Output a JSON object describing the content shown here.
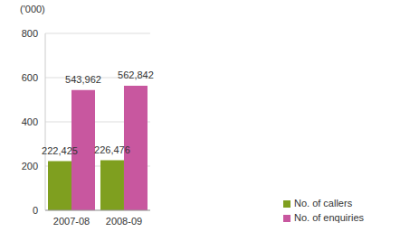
{
  "chart_data": {
    "type": "bar",
    "y_label": "('000)",
    "categories": [
      "2007-08",
      "2008-09"
    ],
    "series": [
      {
        "name": "No. of callers",
        "color": "#7f9f1f",
        "values": [
          222.425,
          226.476
        ],
        "value_labels": [
          "222,425",
          "226,476"
        ]
      },
      {
        "name": "No. of enquiries",
        "color": "#c8579f",
        "values": [
          543.962,
          562.842
        ],
        "value_labels": [
          "543,962",
          "562,842"
        ]
      }
    ],
    "ylim": [
      0,
      800
    ],
    "yticks": [
      0,
      200,
      400,
      600,
      800
    ],
    "grid": true,
    "data_labels": true,
    "legend": "lower right"
  }
}
